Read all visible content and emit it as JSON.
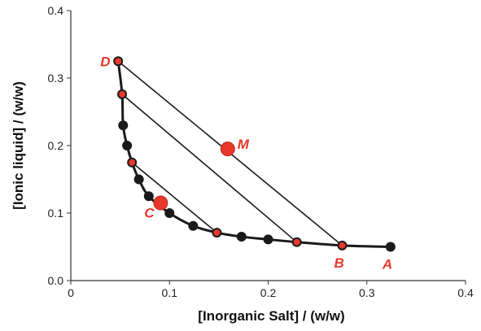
{
  "chart_data": {
    "type": "scatter",
    "title": "",
    "xlabel": "[Inorganic Salt] / (w/w)",
    "ylabel": "[Ionic liquid] / (w/w)",
    "xlim": [
      0,
      0.4
    ],
    "ylim": [
      0,
      0.4
    ],
    "x_ticks": [
      "0",
      "0.1",
      "0.2",
      "0.3",
      "0.4"
    ],
    "y_ticks": [
      "0.0",
      "0.1",
      "0.2",
      "0.3",
      "0.4"
    ],
    "grid": false,
    "series": [
      {
        "type": "line+markers",
        "points": [
          {
            "x": 0.048,
            "y": 0.325,
            "marker": "tie"
          },
          {
            "x": 0.052,
            "y": 0.276,
            "marker": "tie"
          },
          {
            "x": 0.053,
            "y": 0.23,
            "marker": "filled"
          },
          {
            "x": 0.057,
            "y": 0.2,
            "marker": "filled"
          },
          {
            "x": 0.062,
            "y": 0.175,
            "marker": "tie"
          },
          {
            "x": 0.069,
            "y": 0.15,
            "marker": "filled"
          },
          {
            "x": 0.079,
            "y": 0.125,
            "marker": "filled"
          },
          {
            "x": 0.1,
            "y": 0.1,
            "marker": "filled"
          },
          {
            "x": 0.124,
            "y": 0.081,
            "marker": "filled"
          },
          {
            "x": 0.148,
            "y": 0.071,
            "marker": "tie"
          },
          {
            "x": 0.173,
            "y": 0.065,
            "marker": "filled"
          },
          {
            "x": 0.2,
            "y": 0.061,
            "marker": "filled"
          },
          {
            "x": 0.229,
            "y": 0.057,
            "marker": "tie"
          },
          {
            "x": 0.275,
            "y": 0.052,
            "marker": "tie"
          },
          {
            "x": 0.324,
            "y": 0.05,
            "marker": "filled"
          }
        ]
      }
    ],
    "tie_lines": [
      {
        "from": [
          0.048,
          0.325
        ],
        "to": [
          0.275,
          0.052
        ]
      },
      {
        "from": [
          0.052,
          0.276
        ],
        "to": [
          0.229,
          0.057
        ]
      },
      {
        "from": [
          0.062,
          0.175
        ],
        "to": [
          0.148,
          0.071
        ]
      }
    ],
    "special_points": [
      {
        "label": "M",
        "x": 0.159,
        "y": 0.195
      },
      {
        "label": "C",
        "x": 0.091,
        "y": 0.115
      }
    ],
    "point_labels": [
      {
        "label": "D",
        "x": 0.048,
        "y": 0.325,
        "position": "left"
      },
      {
        "label": "M",
        "x": 0.159,
        "y": 0.195,
        "position": "right"
      },
      {
        "label": "C",
        "x": 0.091,
        "y": 0.115,
        "position": "below-left"
      },
      {
        "label": "B",
        "x": 0.275,
        "y": 0.052,
        "position": "below"
      },
      {
        "label": "A",
        "x": 0.324,
        "y": 0.05,
        "position": "below"
      }
    ],
    "colors": {
      "line": "#1a1a1a",
      "filled_marker": "#1a1a1a",
      "tie_marker_fill": "#e8382b",
      "tie_marker_stroke": "#1a1a1a",
      "special_fill": "#e8382b",
      "label": "#e8382b"
    }
  }
}
